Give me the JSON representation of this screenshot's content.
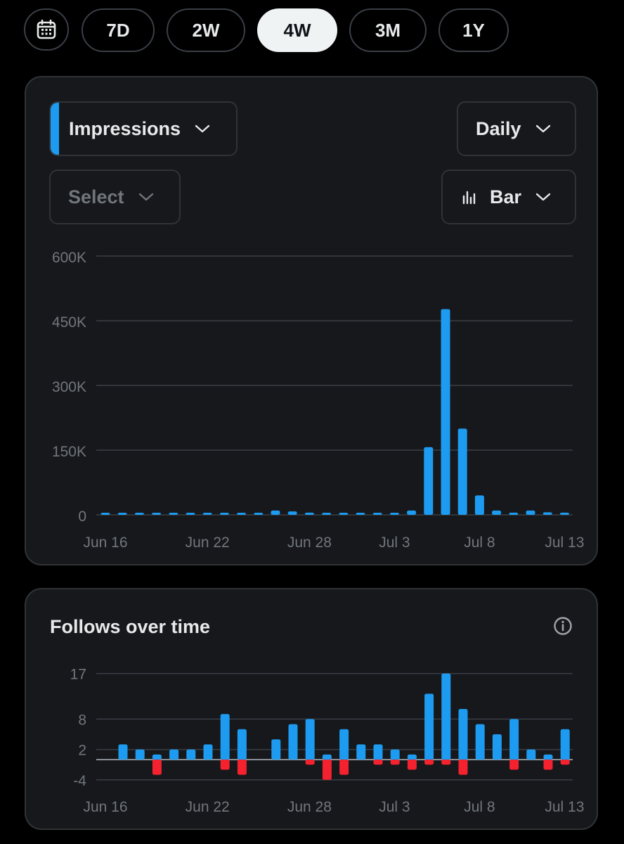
{
  "range": {
    "buttons": [
      "7D",
      "2W",
      "4W",
      "3M",
      "1Y"
    ],
    "active": "4W"
  },
  "impressions_card": {
    "metric_label": "Impressions",
    "interval_label": "Daily",
    "compare_label": "Select",
    "chart_type_label": "Bar"
  },
  "follows_card": {
    "title": "Follows over time"
  },
  "colors": {
    "accent": "#1d9bf0",
    "negative": "#f4212e",
    "grid": "#3a3f45",
    "tick": "#71767b"
  },
  "chart_data": [
    {
      "type": "bar",
      "title": "Impressions",
      "x": [
        "Jun 16",
        "Jun 17",
        "Jun 18",
        "Jun 19",
        "Jun 20",
        "Jun 21",
        "Jun 22",
        "Jun 23",
        "Jun 24",
        "Jun 25",
        "Jun 26",
        "Jun 27",
        "Jun 28",
        "Jun 29",
        "Jun 30",
        "Jul 1",
        "Jul 2",
        "Jul 3",
        "Jul 4",
        "Jul 5",
        "Jul 6",
        "Jul 7",
        "Jul 8",
        "Jul 9",
        "Jul 10",
        "Jul 11",
        "Jul 12",
        "Jul 13"
      ],
      "x_tick_labels": [
        "Jun 16",
        "Jun 22",
        "Jun 28",
        "Jul 3",
        "Jul 8",
        "Jul 13"
      ],
      "y_tick_labels": [
        "0",
        "150K",
        "300K",
        "450K",
        "600K"
      ],
      "ylim": [
        0,
        600000
      ],
      "grid": true,
      "series": [
        {
          "values": [
            3000,
            2000,
            2000,
            2000,
            2000,
            4000,
            4000,
            4000,
            4000,
            3000,
            10000,
            8000,
            5000,
            4000,
            3000,
            3000,
            4000,
            4000,
            10000,
            157000,
            477000,
            200000,
            45000,
            10000,
            5000,
            10000,
            6000,
            5000
          ]
        }
      ]
    },
    {
      "type": "bar",
      "title": "Follows over time",
      "x": [
        "Jun 16",
        "Jun 17",
        "Jun 18",
        "Jun 19",
        "Jun 20",
        "Jun 21",
        "Jun 22",
        "Jun 23",
        "Jun 24",
        "Jun 25",
        "Jun 26",
        "Jun 27",
        "Jun 28",
        "Jun 29",
        "Jun 30",
        "Jul 1",
        "Jul 2",
        "Jul 3",
        "Jul 4",
        "Jul 5",
        "Jul 6",
        "Jul 7",
        "Jul 8",
        "Jul 9",
        "Jul 10",
        "Jul 11",
        "Jul 12",
        "Jul 13"
      ],
      "x_tick_labels": [
        "Jun 16",
        "Jun 22",
        "Jun 28",
        "Jul 3",
        "Jul 8",
        "Jul 13"
      ],
      "y_tick_labels": [
        "-4",
        "2",
        "8",
        "17"
      ],
      "grid": true,
      "series": [
        {
          "name": "follows",
          "values": [
            3,
            2,
            1,
            2,
            2,
            3,
            9,
            6,
            null,
            4,
            7,
            8,
            1,
            6,
            3,
            3,
            2,
            1,
            13,
            17,
            10,
            7,
            5,
            8,
            2,
            1,
            6,
            null
          ]
        },
        {
          "name": "unfollows",
          "values": [
            0,
            0,
            -3,
            0,
            0,
            0,
            -2,
            -3,
            null,
            0,
            0,
            -1,
            -4,
            -3,
            0,
            -1,
            -1,
            -2,
            -1,
            -1,
            -3,
            0,
            0,
            -2,
            0,
            -2,
            -1,
            null
          ]
        }
      ]
    }
  ]
}
